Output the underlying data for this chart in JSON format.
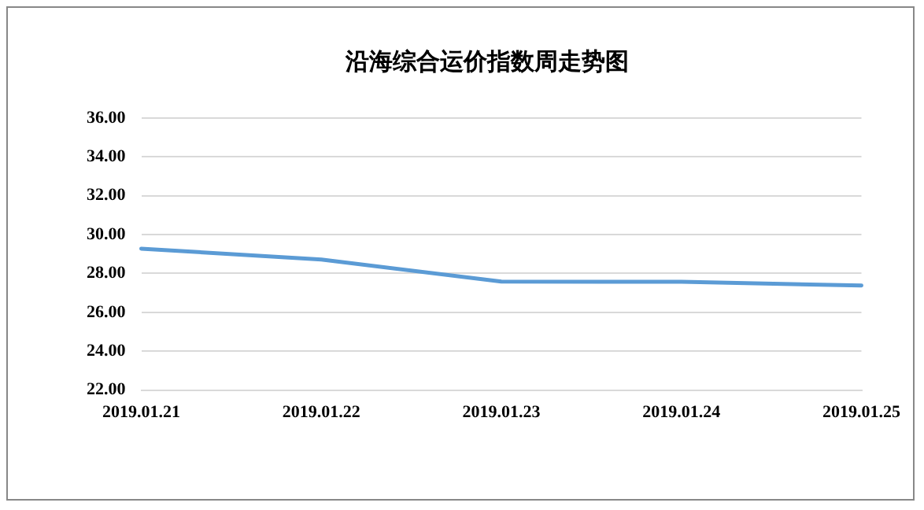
{
  "chart_data": {
    "type": "line",
    "title": "沿海综合运价指数周走势图",
    "categories": [
      "2019.01.21",
      "2019.01.22",
      "2019.01.23",
      "2019.01.24",
      "2019.01.25"
    ],
    "series": [
      {
        "color": "#5b9bd5",
        "values": [
          29.28,
          28.72,
          27.58,
          27.57,
          27.38
        ]
      }
    ],
    "ylim": [
      22,
      36
    ],
    "yticks": [
      {
        "value": 22,
        "label": "22.00"
      },
      {
        "value": 24,
        "label": "24.00"
      },
      {
        "value": 26,
        "label": "26.00"
      },
      {
        "value": 28,
        "label": "28.00"
      },
      {
        "value": 30,
        "label": "30.00"
      },
      {
        "value": 32,
        "label": "32.00"
      },
      {
        "value": 34,
        "label": "34.00"
      },
      {
        "value": 36,
        "label": "36.00"
      }
    ],
    "grid": "y",
    "legend": false,
    "marker": "none",
    "line_style": "solid"
  }
}
